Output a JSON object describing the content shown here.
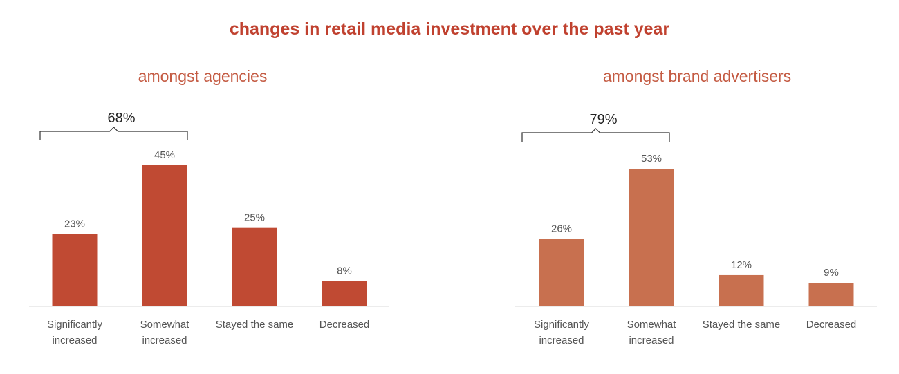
{
  "title": "changes in retail media investment over the past year",
  "chart_data": [
    {
      "type": "bar",
      "title": "amongst agencies",
      "categories": [
        [
          "Significantly",
          "increased"
        ],
        [
          "Somewhat",
          "increased"
        ],
        [
          "Stayed the same"
        ],
        [
          "Decreased"
        ]
      ],
      "values": [
        23,
        45,
        25,
        8
      ],
      "value_labels": [
        "23%",
        "45%",
        "25%",
        "8%"
      ],
      "bracket": {
        "label": "68%",
        "spans": [
          "Significantly increased",
          "Somewhat increased"
        ]
      },
      "color": "#c04a33"
    },
    {
      "type": "bar",
      "title": "amongst brand advertisers",
      "categories": [
        [
          "Significantly",
          "increased"
        ],
        [
          "Somewhat",
          "increased"
        ],
        [
          "Stayed the same"
        ],
        [
          "Decreased"
        ]
      ],
      "values": [
        26,
        53,
        12,
        9
      ],
      "value_labels": [
        "26%",
        "53%",
        "12%",
        "9%"
      ],
      "bracket": {
        "label": "79%",
        "spans": [
          "Significantly increased",
          "Somewhat increased"
        ]
      },
      "color": "#c8704f"
    }
  ]
}
